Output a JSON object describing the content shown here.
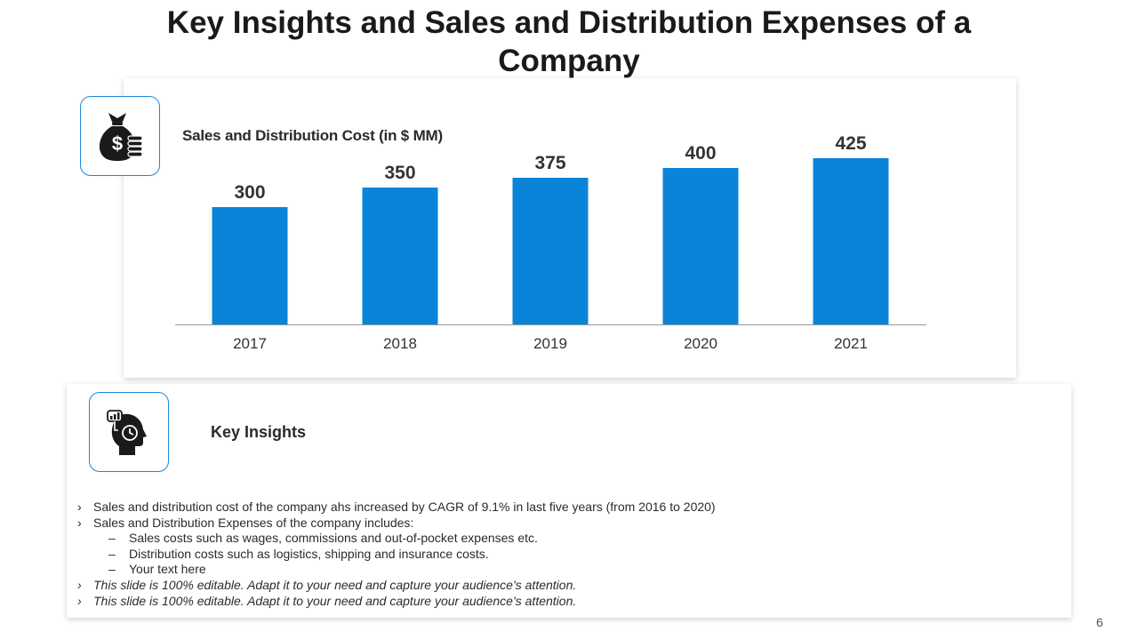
{
  "slide": {
    "title": "Key Insights and Sales and Distribution Expenses of a Company",
    "page_number": "6",
    "accent_color": "#1b87d6"
  },
  "icons": {
    "chart_icon": "money-bag-coins-icon",
    "insights_icon": "head-chart-clock-icon"
  },
  "chart_data": {
    "type": "bar",
    "title": "Sales and Distribution Cost (in $ MM)",
    "categories": [
      "2017",
      "2018",
      "2019",
      "2020",
      "2021"
    ],
    "values": [
      300,
      350,
      375,
      400,
      425
    ],
    "data_labels": [
      "300",
      "350",
      "375",
      "400",
      "425"
    ],
    "xlabel": "",
    "ylabel": "",
    "ylim": [
      0,
      450
    ],
    "bar_color": "#0a84d8",
    "grid": false,
    "legend": "none"
  },
  "insights": {
    "heading": "Key Insights",
    "bullets": [
      "Sales and distribution cost of the company ahs increased by CAGR of 9.1% in last five years (from 2016 to 2020)",
      "Sales and Distribution Expenses of the company includes:",
      "Sales costs such as wages, commissions and out-of-pocket expenses etc.",
      "Distribution costs such as logistics, shipping and insurance costs.",
      "Your text here",
      "This slide is 100% editable. Adapt it to your need and capture your audience’s attention.",
      "This slide is 100% editable. Adapt it to your need and capture your audience’s attention."
    ]
  }
}
